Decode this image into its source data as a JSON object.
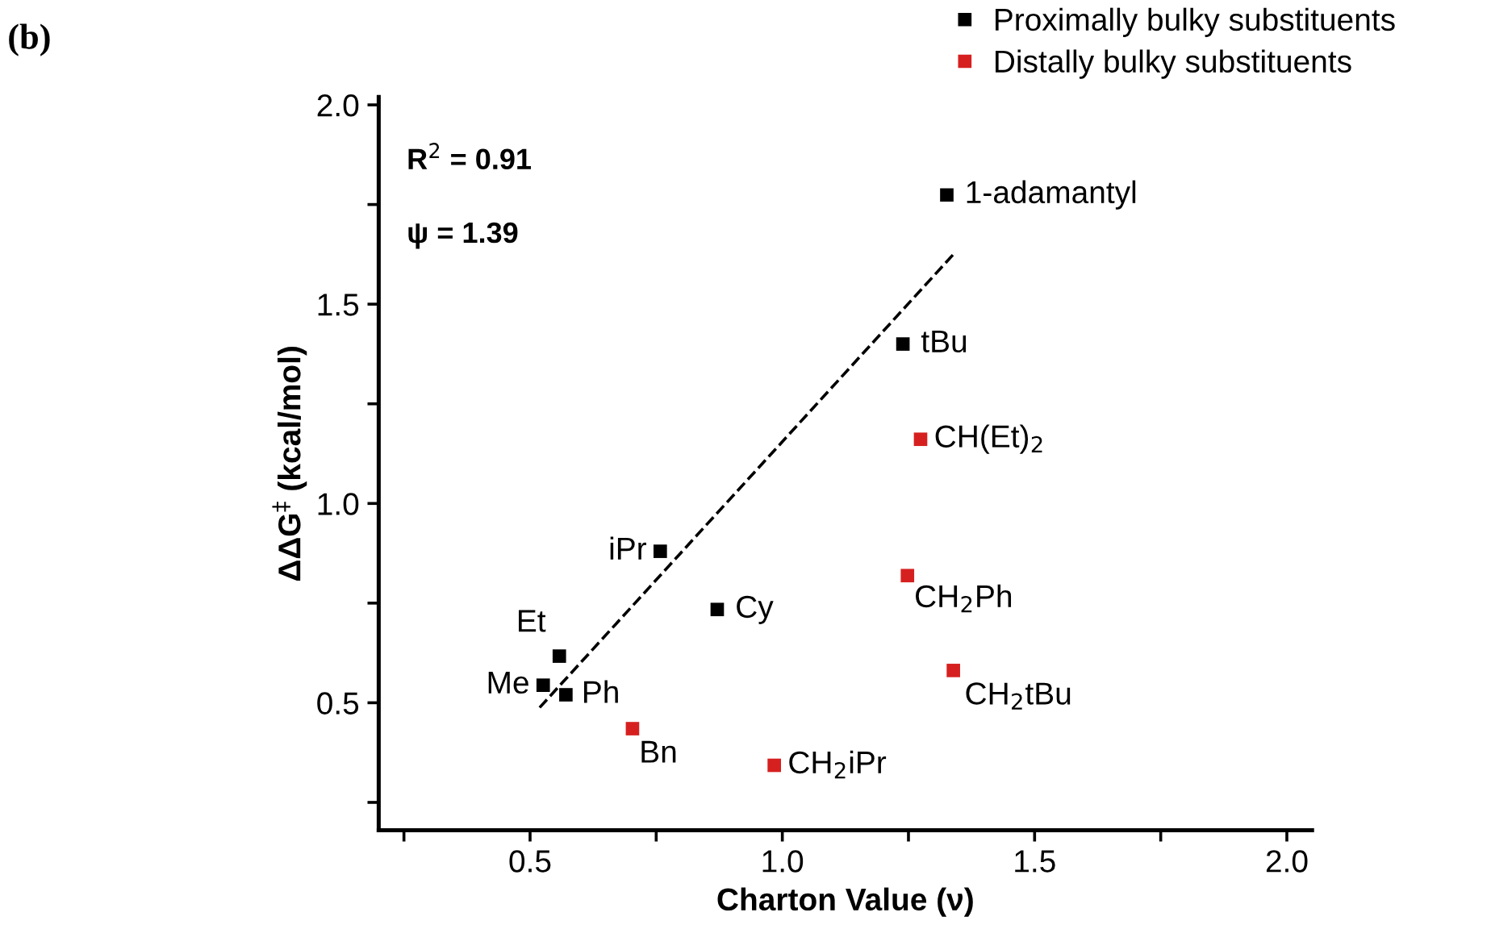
{
  "chart_data": {
    "type": "scatter",
    "xlabel": "Charton Value (ν)",
    "ylabel": "ΔΔG$^{‡}$ (kcal/mol)",
    "xlim": [
      0.2,
      2.05
    ],
    "ylim": [
      0.18,
      2.02
    ],
    "xticks": [
      {
        "value": 0.25,
        "label": null
      },
      0.5,
      {
        "value": 0.75,
        "label": null
      },
      {
        "value": 1,
        "label": "1.0"
      },
      {
        "value": 1.25,
        "label": null
      },
      1.5,
      {
        "value": 1.75,
        "label": null
      },
      {
        "value": 2,
        "label": "2.0"
      }
    ],
    "yticks": [
      {
        "value": 0.25,
        "label": null
      },
      0.5,
      {
        "value": 0.75,
        "label": null
      },
      {
        "value": 1,
        "label": "1.0"
      },
      {
        "value": 1.25,
        "label": null
      },
      1.5,
      {
        "value": 1.75,
        "label": null
      },
      {
        "value": 2,
        "label": "2.0"
      }
    ],
    "grid": false,
    "legend": "top right",
    "marker": "square",
    "series": [
      {
        "name": "Proximally bulky substituents",
        "color": "#000000",
        "x": [
          0.526,
          0.558,
          0.571,
          0.758,
          0.871,
          1.326,
          1.239
        ],
        "values": [
          0.544,
          0.617,
          0.52,
          0.88,
          0.734,
          1.774,
          1.4
        ]
      },
      {
        "name": "Distally bulky substituents",
        "color": "#d62020",
        "x": [
          1.274,
          1.248,
          1.339,
          0.703,
          0.984
        ],
        "values": [
          1.161,
          0.819,
          0.581,
          0.435,
          0.343
        ]
      },
      {
        "type": "line",
        "color": "#000000",
        "line_style": "dashed",
        "marker": "none",
        "x": [
          0.519,
          1.339
        ],
        "values": [
          0.488,
          1.625
        ]
      }
    ],
    "annotations": [
      "(b)",
      "R$^{2}$ = 0.91",
      "ψ = 1.39",
      {
        "text": "Me",
        "x": 0.526,
        "y": 0.544
      },
      {
        "text": "Et",
        "x": 0.558,
        "y": 0.617
      },
      {
        "text": "Ph",
        "x": 0.571,
        "y": 0.52
      },
      {
        "text": "iPr",
        "x": 0.758,
        "y": 0.88
      },
      {
        "text": "Cy",
        "x": 0.871,
        "y": 0.734
      },
      {
        "text": "1-adamantyl",
        "x": 1.326,
        "y": 1.774
      },
      {
        "text": "tBu",
        "x": 1.239,
        "y": 1.4
      },
      {
        "text": "CH(Et)$_{2}$",
        "x": 1.274,
        "y": 1.161
      },
      {
        "text": "CH$_{2}$Ph",
        "x": 1.248,
        "y": 0.819
      },
      {
        "text": "CH$_{2}$tBu",
        "x": 1.339,
        "y": 0.581
      },
      {
        "text": "Bn",
        "x": 0.703,
        "y": 0.435
      },
      {
        "text": "CH$_{2}$iPr",
        "x": 0.984,
        "y": 0.343
      }
    ]
  }
}
